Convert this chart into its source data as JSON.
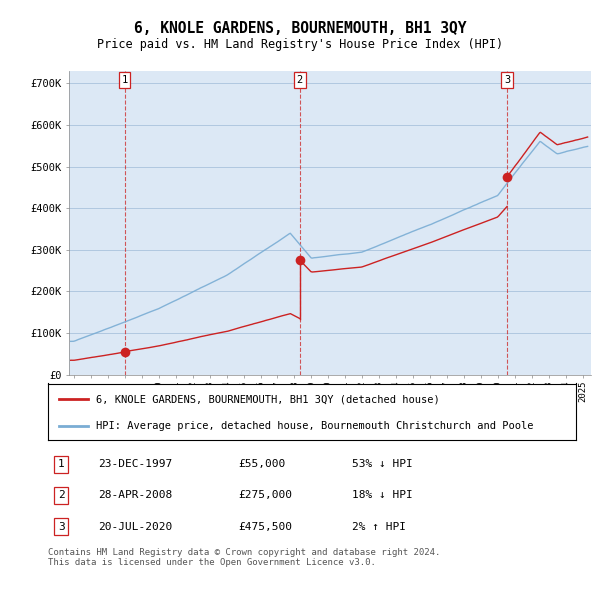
{
  "title": "6, KNOLE GARDENS, BOURNEMOUTH, BH1 3QY",
  "subtitle": "Price paid vs. HM Land Registry's House Price Index (HPI)",
  "ylabel_ticks": [
    "£0",
    "£100K",
    "£200K",
    "£300K",
    "£400K",
    "£500K",
    "£600K",
    "£700K"
  ],
  "ytick_values": [
    0,
    100000,
    200000,
    300000,
    400000,
    500000,
    600000,
    700000
  ],
  "ylim": [
    0,
    720000
  ],
  "xlim_start": 1994.7,
  "xlim_end": 2025.5,
  "sale_dates": [
    1997.98,
    2008.32,
    2020.55
  ],
  "sale_prices": [
    55000,
    275000,
    475500
  ],
  "sale_labels": [
    "1",
    "2",
    "3"
  ],
  "hpi_color": "#7aadd4",
  "sale_color": "#cc2222",
  "dashed_color": "#cc2222",
  "plot_bg_color": "#dce8f5",
  "legend_label_red": "6, KNOLE GARDENS, BOURNEMOUTH, BH1 3QY (detached house)",
  "legend_label_blue": "HPI: Average price, detached house, Bournemouth Christchurch and Poole",
  "table_rows": [
    [
      "1",
      "23-DEC-1997",
      "£55,000",
      "53% ↓ HPI"
    ],
    [
      "2",
      "28-APR-2008",
      "£275,000",
      "18% ↓ HPI"
    ],
    [
      "3",
      "20-JUL-2020",
      "£475,500",
      "2% ↑ HPI"
    ]
  ],
  "footnote": "Contains HM Land Registry data © Crown copyright and database right 2024.\nThis data is licensed under the Open Government Licence v3.0.",
  "background_color": "#ffffff",
  "grid_color": "#b0c8e0"
}
